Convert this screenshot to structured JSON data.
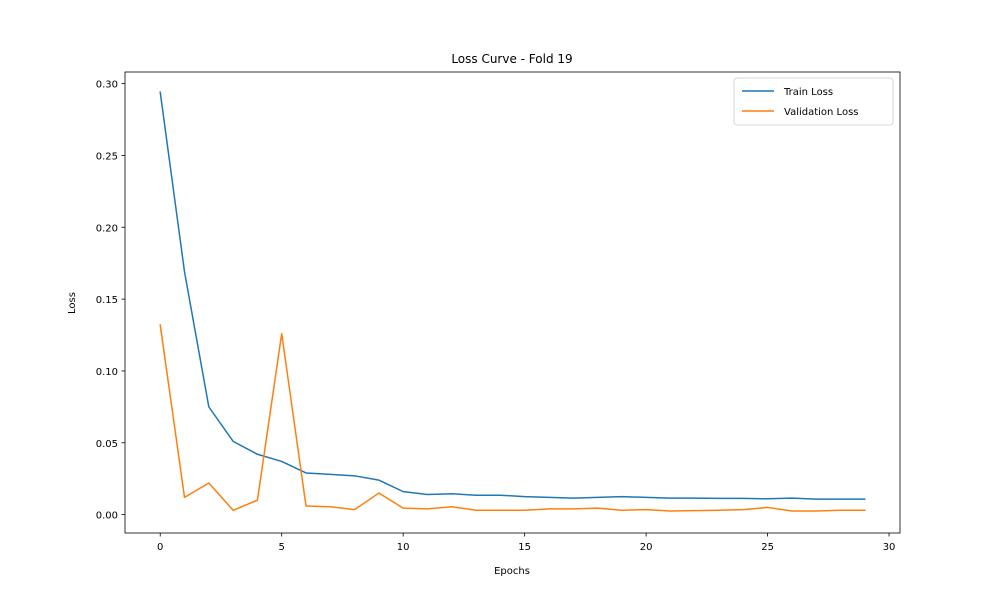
{
  "chart_data": {
    "type": "line",
    "title": "Loss Curve - Fold 19",
    "xlabel": "Epochs",
    "ylabel": "Loss",
    "x": [
      0,
      1,
      2,
      3,
      4,
      5,
      6,
      7,
      8,
      9,
      10,
      11,
      12,
      13,
      14,
      15,
      16,
      17,
      18,
      19,
      20,
      21,
      22,
      23,
      24,
      25,
      26,
      27,
      28,
      29
    ],
    "xlim": [
      -1.45,
      30.45
    ],
    "ylim": [
      -0.0128,
      0.3081
    ],
    "xticks": [
      0,
      5,
      10,
      15,
      20,
      25,
      30
    ],
    "yticks": [
      0.0,
      0.05,
      0.1,
      0.15,
      0.2,
      0.25,
      0.3
    ],
    "xtick_labels": [
      "0",
      "5",
      "10",
      "15",
      "20",
      "25",
      "30"
    ],
    "ytick_labels": [
      "0.00",
      "0.05",
      "0.10",
      "0.15",
      "0.20",
      "0.25",
      "0.30"
    ],
    "grid": false,
    "legend_position": "top-right",
    "series": [
      {
        "name": "Train Loss",
        "color": "#1f77b4",
        "values": [
          0.294,
          0.169,
          0.075,
          0.051,
          0.042,
          0.037,
          0.029,
          0.028,
          0.027,
          0.024,
          0.016,
          0.014,
          0.0145,
          0.0135,
          0.0135,
          0.0125,
          0.012,
          0.0115,
          0.012,
          0.0125,
          0.012,
          0.0115,
          0.0115,
          0.0113,
          0.0113,
          0.011,
          0.0115,
          0.0108,
          0.0108,
          0.0108
        ]
      },
      {
        "name": "Validation Loss",
        "color": "#ff7f0e",
        "values": [
          0.132,
          0.012,
          0.022,
          0.003,
          0.01,
          0.126,
          0.006,
          0.0055,
          0.0035,
          0.015,
          0.0045,
          0.004,
          0.0055,
          0.003,
          0.003,
          0.003,
          0.004,
          0.004,
          0.0045,
          0.003,
          0.0035,
          0.0025,
          0.0028,
          0.003,
          0.0035,
          0.005,
          0.0025,
          0.0025,
          0.003,
          0.003
        ]
      }
    ]
  }
}
